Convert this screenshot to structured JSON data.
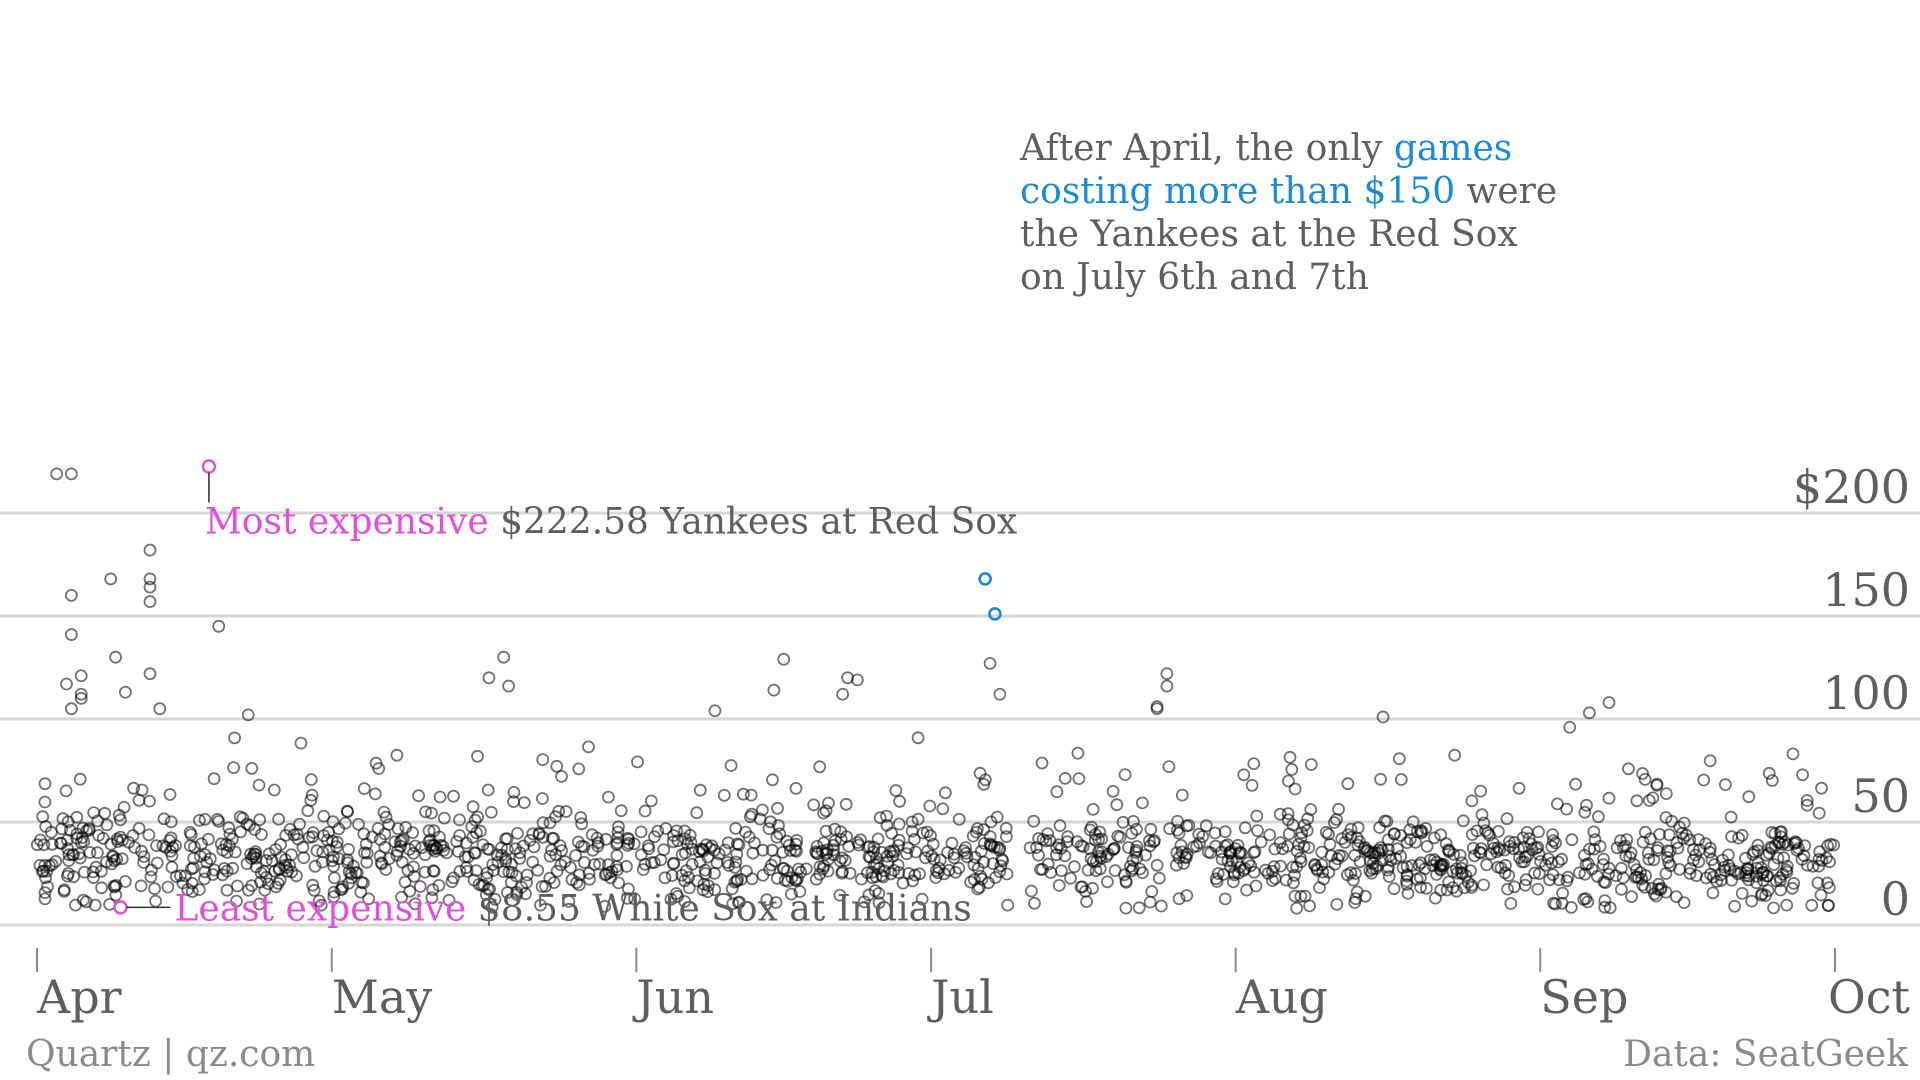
{
  "colors": {
    "highlight_pink": "#e24fd8",
    "highlight_blue": "#1b8bd8",
    "point": "#000000",
    "gridline": "#d6d6d6",
    "text": "#5e5e5e"
  },
  "annotations": {
    "most": {
      "label": "Most expensive",
      "detail": " $222.58 Yankees at Red Sox"
    },
    "least": {
      "label": "Least expensive",
      "detail": " $8.55 White Sox at Indians"
    },
    "after_april": {
      "line1_a": "After April, the only ",
      "line1_b": "games",
      "line2_a": "costing more than $150",
      "line2_b": " were",
      "line3": "the Yankees at the Red Sox",
      "line4": "on July 6th and 7th"
    }
  },
  "footer": {
    "left": "Quartz | qz.com",
    "right": "Data: SeatGeek"
  },
  "chart_data": {
    "type": "scatter",
    "title": "",
    "xlabel": "",
    "ylabel": "",
    "x_axis": {
      "ticks": [
        "Apr",
        "May",
        "Jun",
        "Jul",
        "Aug",
        "Sep",
        "Oct"
      ],
      "range_days": [
        0,
        183
      ]
    },
    "y_axis": {
      "ticks": [
        0,
        50,
        100,
        150,
        200
      ],
      "tick_labels": [
        "0",
        "50",
        "100",
        "150",
        "$200"
      ],
      "range": [
        0,
        222
      ]
    },
    "grid": true,
    "highlighted_points": [
      {
        "day": 17.5,
        "value": 222.58,
        "series": "most expensive"
      },
      {
        "day": 8.5,
        "value": 8.55,
        "series": "least expensive"
      },
      {
        "day": 96.5,
        "value": 168,
        "series": "games costing more than $150"
      },
      {
        "day": 97.5,
        "value": 151,
        "series": "games costing more than $150"
      }
    ],
    "notable_points": [
      {
        "day": 2,
        "value": 219
      },
      {
        "day": 3.5,
        "value": 219
      },
      {
        "day": 11.5,
        "value": 182
      },
      {
        "day": 11.5,
        "value": 168
      },
      {
        "day": 11.5,
        "value": 164
      },
      {
        "day": 11.5,
        "value": 157
      },
      {
        "day": 7.5,
        "value": 168
      },
      {
        "day": 3.5,
        "value": 160
      },
      {
        "day": 18.5,
        "value": 145
      },
      {
        "day": 3.5,
        "value": 141
      },
      {
        "day": 8,
        "value": 130
      },
      {
        "day": 11.5,
        "value": 122
      },
      {
        "day": 4.5,
        "value": 121
      },
      {
        "day": 3,
        "value": 117
      },
      {
        "day": 9,
        "value": 113
      },
      {
        "day": 4.5,
        "value": 112
      },
      {
        "day": 4.5,
        "value": 110
      },
      {
        "day": 3.5,
        "value": 105
      },
      {
        "day": 12.5,
        "value": 105
      },
      {
        "day": 21.5,
        "value": 102
      },
      {
        "day": 97,
        "value": 127
      },
      {
        "day": 98,
        "value": 112
      },
      {
        "day": 47.5,
        "value": 130
      },
      {
        "day": 46,
        "value": 120
      },
      {
        "day": 48,
        "value": 116
      },
      {
        "day": 76,
        "value": 129
      },
      {
        "day": 82.5,
        "value": 120
      },
      {
        "day": 83.5,
        "value": 119
      },
      {
        "day": 75,
        "value": 114
      },
      {
        "day": 82,
        "value": 112
      },
      {
        "day": 115,
        "value": 122
      },
      {
        "day": 115,
        "value": 116
      },
      {
        "day": 114,
        "value": 106
      },
      {
        "day": 114,
        "value": 105
      },
      {
        "day": 137,
        "value": 101
      },
      {
        "day": 160,
        "value": 108
      },
      {
        "day": 158,
        "value": 103
      },
      {
        "day": 156,
        "value": 96
      },
      {
        "day": 69,
        "value": 104
      }
    ],
    "bulk_distribution": {
      "points_total": 1500,
      "typical_range": [
        8,
        60
      ],
      "median_approx": 33,
      "gap_days": [
        99,
        101
      ]
    }
  }
}
